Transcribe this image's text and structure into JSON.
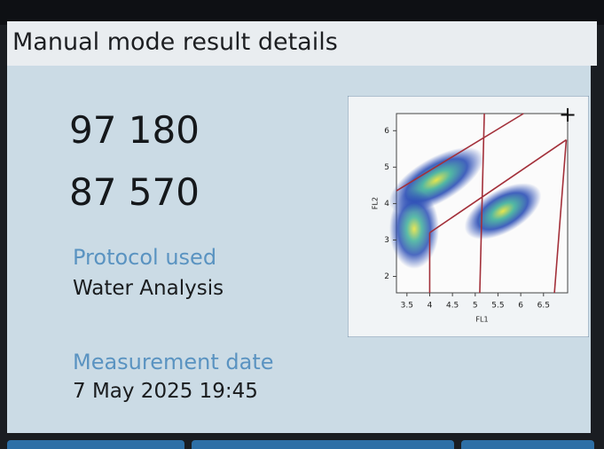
{
  "header": {
    "title": "Manual mode result details"
  },
  "results": {
    "count1": "97 180",
    "count2": "87 570"
  },
  "protocol": {
    "label": "Protocol used",
    "value": "Water Analysis"
  },
  "measurement": {
    "label": "Measurement date",
    "value": "7 May 2025 19:45"
  },
  "chart_data": {
    "type": "scatter",
    "x_label": "FL1",
    "y_label": "FL2",
    "xlim": [
      3.27,
      7.03
    ],
    "ylim": [
      1.55,
      6.47
    ],
    "xticks": [
      3.5,
      4,
      4.5,
      5,
      5.5,
      6,
      6.5
    ],
    "yticks": [
      2,
      3,
      4,
      5,
      6
    ],
    "gate_color": "#a3303a",
    "gates": [
      {
        "x": [
          3.27,
          6.06
        ],
        "y": [
          4.35,
          6.47
        ]
      },
      {
        "x": [
          5.2,
          5.1
        ],
        "y": [
          6.47,
          1.55
        ]
      },
      {
        "x": [
          4,
          7.0
        ],
        "y": [
          3.2,
          5.75
        ]
      },
      {
        "x": [
          4,
          4
        ],
        "y": [
          3.2,
          1.55
        ]
      },
      {
        "x": [
          7.0,
          6.74
        ],
        "y": [
          5.75,
          1.55
        ]
      }
    ]
  }
}
